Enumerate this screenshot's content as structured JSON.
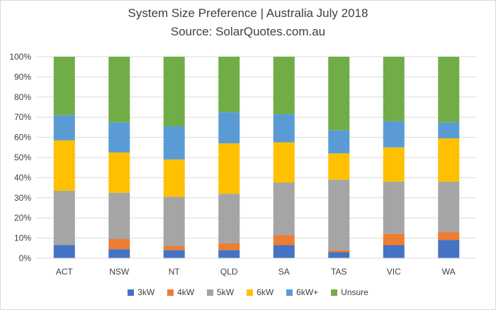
{
  "chart_data": {
    "type": "bar",
    "stacked": true,
    "title": "System Size Preference  | Australia July 2018",
    "subtitle": "Source: SolarQuotes.com.au",
    "categories": [
      "ACT",
      "NSW",
      "NT",
      "QLD",
      "SA",
      "TAS",
      "VIC",
      "WA"
    ],
    "ylim": [
      0,
      100
    ],
    "yticks": [
      "0%",
      "10%",
      "20%",
      "30%",
      "40%",
      "50%",
      "60%",
      "70%",
      "80%",
      "90%",
      "100%"
    ],
    "grid": true,
    "legend_position": "bottom",
    "series": [
      {
        "name": "3kW",
        "color": "#4472C4",
        "values": [
          6.5,
          4.5,
          4,
          4,
          6.5,
          3,
          6.5,
          9
        ]
      },
      {
        "name": "4kW",
        "color": "#ED7D31",
        "values": [
          0,
          5,
          2,
          3.5,
          5,
          1,
          5.5,
          4
        ]
      },
      {
        "name": "5kW",
        "color": "#A5A5A5",
        "values": [
          27,
          23,
          24.5,
          24.5,
          26,
          35,
          26,
          25
        ]
      },
      {
        "name": "6kW",
        "color": "#FFC000",
        "values": [
          25,
          20,
          18.5,
          25,
          20,
          13,
          17,
          21.5
        ]
      },
      {
        "name": "6kW+",
        "color": "#5B9BD5",
        "values": [
          12.5,
          15,
          16.5,
          15.5,
          14,
          11.5,
          13,
          8
        ]
      },
      {
        "name": "Unsure",
        "color": "#70AD47",
        "values": [
          29,
          32.5,
          34.5,
          27.5,
          28.5,
          36.5,
          32,
          32.5
        ]
      }
    ]
  }
}
